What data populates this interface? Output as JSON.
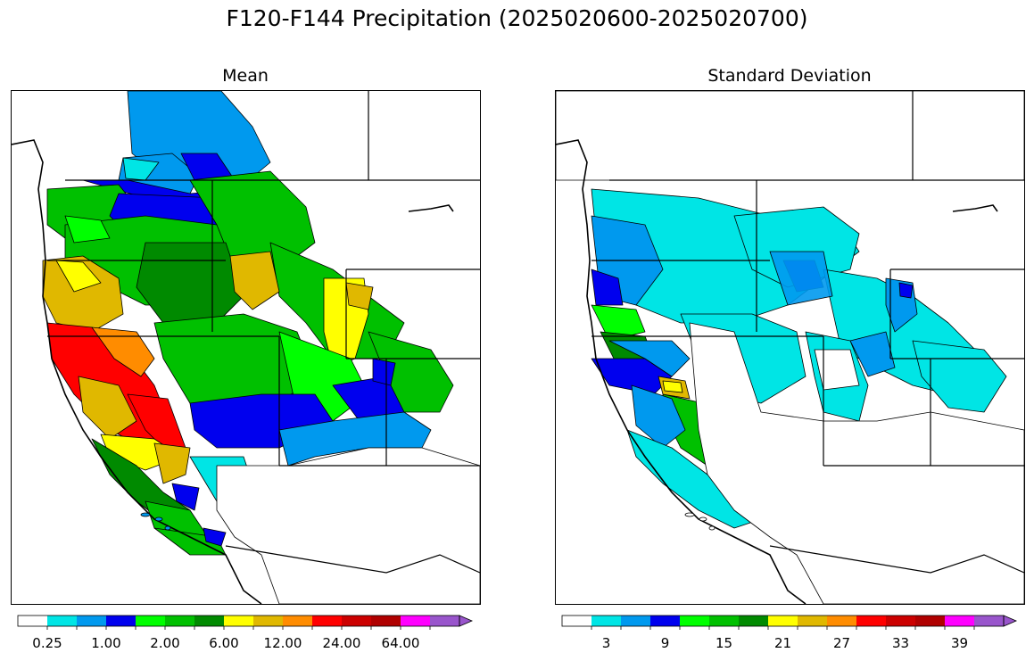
{
  "figure": {
    "title": "F120-F144 Precipitation (2025020600-2025020700)"
  },
  "panels": [
    {
      "id": "mean",
      "title": "Mean",
      "colorbar": {
        "colors": [
          "#ffffff",
          "#00e5e5",
          "#0099ee",
          "#0000ee",
          "#00ff00",
          "#00c000",
          "#008a00",
          "#ffff00",
          "#e0b800",
          "#ff8c00",
          "#ff0000",
          "#cc0000",
          "#b00000",
          "#ff00ff",
          "#9955cc"
        ],
        "tick_labels": [
          "0.25",
          "1.00",
          "2.00",
          "6.00",
          "12.00",
          "24.00",
          "64.00"
        ],
        "extend": "max"
      }
    },
    {
      "id": "stddev",
      "title": "Standard Deviation",
      "colorbar": {
        "colors": [
          "#ffffff",
          "#00e5e5",
          "#0099ee",
          "#0000ee",
          "#00ff00",
          "#00c000",
          "#008a00",
          "#ffff00",
          "#e0b800",
          "#ff8c00",
          "#ff0000",
          "#cc0000",
          "#b00000",
          "#ff00ff",
          "#9955cc"
        ],
        "tick_labels": [
          "3",
          "9",
          "15",
          "21",
          "27",
          "33",
          "39"
        ],
        "extend": "max"
      }
    }
  ]
}
